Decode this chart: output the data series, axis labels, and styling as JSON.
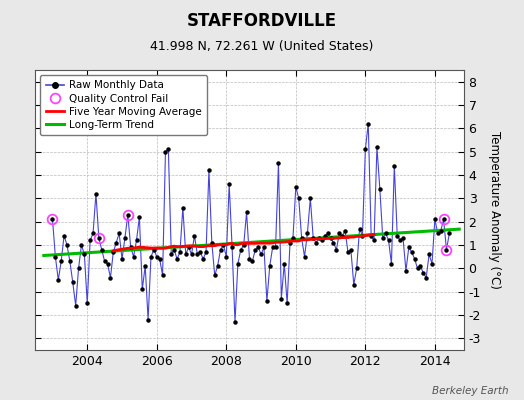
{
  "title": "STAFFORDVILLE",
  "subtitle": "41.998 N, 72.261 W (United States)",
  "ylabel": "Temperature Anomaly (°C)",
  "credit": "Berkeley Earth",
  "ylim": [
    -3.5,
    8.5
  ],
  "yticks": [
    -3,
    -2,
    -1,
    0,
    1,
    2,
    3,
    4,
    5,
    6,
    7,
    8
  ],
  "xlim": [
    2002.5,
    2014.83
  ],
  "xticks": [
    2004,
    2006,
    2008,
    2010,
    2012,
    2014
  ],
  "bg_color": "#e8e8e8",
  "plot_bg_color": "#ffffff",
  "raw_line_color": "#4444dd",
  "raw_marker_color": "#000000",
  "ma_color": "#ff0000",
  "trend_color": "#00bb00",
  "qc_color": "#ff44ff",
  "raw_data_x": [
    2003.0,
    2003.083,
    2003.167,
    2003.25,
    2003.333,
    2003.417,
    2003.5,
    2003.583,
    2003.667,
    2003.75,
    2003.833,
    2003.917,
    2004.0,
    2004.083,
    2004.167,
    2004.25,
    2004.333,
    2004.417,
    2004.5,
    2004.583,
    2004.667,
    2004.75,
    2004.833,
    2004.917,
    2005.0,
    2005.083,
    2005.167,
    2005.25,
    2005.333,
    2005.417,
    2005.5,
    2005.583,
    2005.667,
    2005.75,
    2005.833,
    2005.917,
    2006.0,
    2006.083,
    2006.167,
    2006.25,
    2006.333,
    2006.417,
    2006.5,
    2006.583,
    2006.667,
    2006.75,
    2006.833,
    2006.917,
    2007.0,
    2007.083,
    2007.167,
    2007.25,
    2007.333,
    2007.417,
    2007.5,
    2007.583,
    2007.667,
    2007.75,
    2007.833,
    2007.917,
    2008.0,
    2008.083,
    2008.167,
    2008.25,
    2008.333,
    2008.417,
    2008.5,
    2008.583,
    2008.667,
    2008.75,
    2008.833,
    2008.917,
    2009.0,
    2009.083,
    2009.167,
    2009.25,
    2009.333,
    2009.417,
    2009.5,
    2009.583,
    2009.667,
    2009.75,
    2009.833,
    2009.917,
    2010.0,
    2010.083,
    2010.167,
    2010.25,
    2010.333,
    2010.417,
    2010.5,
    2010.583,
    2010.667,
    2010.75,
    2010.833,
    2010.917,
    2011.0,
    2011.083,
    2011.167,
    2011.25,
    2011.333,
    2011.417,
    2011.5,
    2011.583,
    2011.667,
    2011.75,
    2011.833,
    2011.917,
    2012.0,
    2012.083,
    2012.167,
    2012.25,
    2012.333,
    2012.417,
    2012.5,
    2012.583,
    2012.667,
    2012.75,
    2012.833,
    2012.917,
    2013.0,
    2013.083,
    2013.167,
    2013.25,
    2013.333,
    2013.417,
    2013.5,
    2013.583,
    2013.667,
    2013.75,
    2013.833,
    2013.917,
    2014.0,
    2014.083,
    2014.167,
    2014.25,
    2014.333,
    2014.417
  ],
  "raw_data_y": [
    2.1,
    0.5,
    -0.5,
    0.3,
    1.4,
    1.0,
    0.3,
    -0.6,
    -1.6,
    0.0,
    1.0,
    0.6,
    -1.5,
    1.2,
    1.5,
    3.2,
    1.3,
    0.8,
    0.3,
    0.2,
    -0.4,
    0.7,
    1.1,
    1.5,
    0.4,
    1.3,
    2.3,
    0.9,
    0.5,
    1.2,
    2.2,
    -0.9,
    0.1,
    -2.2,
    0.5,
    0.8,
    0.5,
    0.4,
    -0.3,
    5.0,
    5.1,
    0.6,
    0.8,
    0.4,
    0.7,
    2.6,
    0.6,
    0.9,
    0.6,
    1.4,
    0.6,
    0.7,
    0.4,
    0.7,
    4.2,
    1.1,
    -0.3,
    0.1,
    0.8,
    1.0,
    0.5,
    3.6,
    0.9,
    -2.3,
    0.2,
    0.8,
    1.0,
    2.4,
    0.4,
    0.3,
    0.8,
    0.9,
    0.6,
    0.9,
    -1.4,
    0.1,
    0.9,
    0.9,
    4.5,
    -1.3,
    0.2,
    -1.5,
    1.1,
    1.3,
    3.5,
    3.0,
    1.3,
    0.5,
    1.5,
    3.0,
    1.3,
    1.1,
    1.3,
    1.2,
    1.4,
    1.5,
    1.3,
    1.1,
    0.8,
    1.5,
    1.4,
    1.6,
    0.7,
    0.8,
    -0.7,
    0.0,
    1.7,
    1.4,
    5.1,
    6.2,
    1.4,
    1.2,
    5.2,
    3.4,
    1.3,
    1.5,
    1.2,
    0.2,
    4.4,
    1.4,
    1.2,
    1.3,
    -0.1,
    0.9,
    0.7,
    0.4,
    0.0,
    0.1,
    -0.2,
    -0.4,
    0.6,
    0.2,
    2.1,
    1.5,
    1.6,
    2.1,
    0.8,
    1.5
  ],
  "qc_fail_x": [
    2003.0,
    2004.333,
    2005.167,
    2014.25,
    2014.333
  ],
  "qc_fail_y": [
    2.1,
    1.3,
    2.3,
    2.1,
    0.8
  ],
  "ma_x": [
    2004.75,
    2004.833,
    2004.917,
    2005.0,
    2005.083,
    2005.167,
    2005.25,
    2005.333,
    2005.417,
    2005.5,
    2005.583,
    2005.667,
    2005.75,
    2005.833,
    2005.917,
    2006.0,
    2006.083,
    2006.167,
    2006.25,
    2006.333,
    2006.417,
    2006.5,
    2006.583,
    2006.667,
    2006.75,
    2006.833,
    2006.917,
    2007.0,
    2007.083,
    2007.167,
    2007.25,
    2007.333,
    2007.417,
    2007.5,
    2007.583,
    2007.667,
    2007.75,
    2007.833,
    2007.917,
    2008.0,
    2008.083,
    2008.167,
    2008.25,
    2008.333,
    2008.417,
    2008.5,
    2008.583,
    2008.667,
    2008.75,
    2008.833,
    2008.917,
    2009.0,
    2009.083,
    2009.167,
    2009.25,
    2009.333,
    2009.417,
    2009.5,
    2009.583,
    2009.667,
    2009.75,
    2009.833,
    2009.917,
    2010.0,
    2010.083,
    2010.167,
    2010.25,
    2010.333,
    2010.417,
    2010.5,
    2010.583,
    2010.667,
    2010.75,
    2010.833,
    2010.917,
    2011.0,
    2011.083,
    2011.167,
    2011.25,
    2011.333,
    2011.417,
    2011.5,
    2011.583,
    2011.667,
    2011.75,
    2011.833,
    2011.917,
    2012.0,
    2012.083,
    2012.167,
    2012.25
  ],
  "ma_y": [
    0.75,
    0.78,
    0.8,
    0.82,
    0.84,
    0.86,
    0.86,
    0.87,
    0.89,
    0.91,
    0.9,
    0.89,
    0.88,
    0.87,
    0.87,
    0.87,
    0.87,
    0.86,
    0.87,
    0.9,
    0.93,
    0.95,
    0.93,
    0.93,
    0.94,
    0.95,
    0.96,
    0.96,
    0.96,
    0.94,
    0.93,
    0.93,
    0.95,
    0.97,
    0.97,
    0.97,
    1.0,
    1.01,
    1.02,
    1.02,
    1.06,
    1.07,
    1.02,
    1.01,
    1.06,
    1.07,
    1.07,
    1.07,
    1.07,
    1.07,
    1.08,
    1.08,
    1.08,
    1.08,
    1.08,
    1.09,
    1.12,
    1.12,
    1.12,
    1.13,
    1.14,
    1.16,
    1.17,
    1.17,
    1.17,
    1.22,
    1.22,
    1.22,
    1.24,
    1.24,
    1.26,
    1.27,
    1.27,
    1.27,
    1.28,
    1.28,
    1.28,
    1.3,
    1.3,
    1.32,
    1.32,
    1.32,
    1.34,
    1.34,
    1.37,
    1.37,
    1.39,
    1.4,
    1.42,
    1.44,
    1.45
  ],
  "trend_x": [
    2002.75,
    2014.7
  ],
  "trend_y": [
    0.55,
    1.68
  ]
}
